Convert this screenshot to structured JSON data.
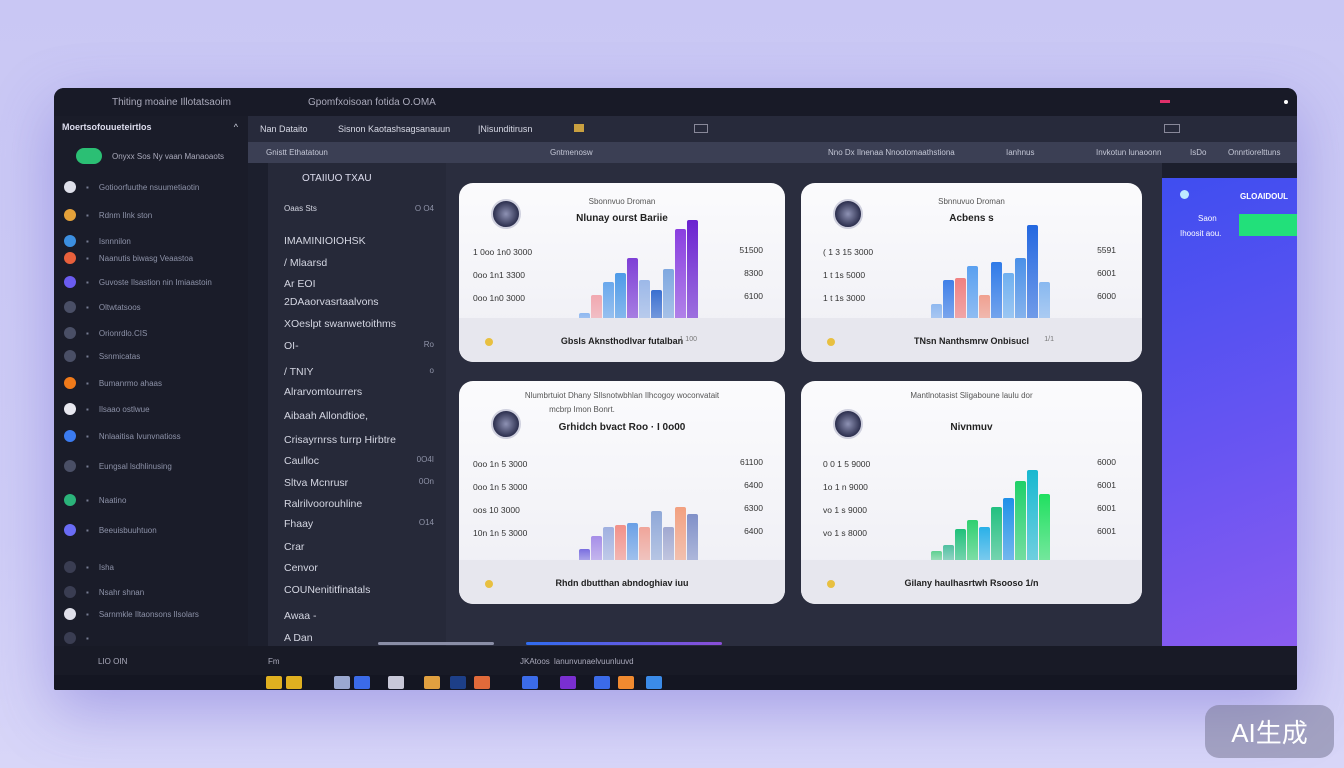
{
  "titlebar": {
    "app": "Thiting moaine Illotatsaoim",
    "doc": "Gpomfxoisoan fotida O.OMA"
  },
  "sidebar": {
    "header": "Moertsofouueteirtlos",
    "chevron": "^",
    "button_label": "Onyxx Sos Ny vaan  Manaoaots",
    "items": [
      {
        "label": "Gotioorfuuthe nsuumetiaotin",
        "color": "#dfe0ea"
      },
      {
        "label": "Rdnm Ilnk ston",
        "color": "#e4a13a"
      },
      {
        "label": "Isnnnilon",
        "color": "#3c8fe0"
      },
      {
        "label": "Naanutis biwasg  Veaastoa",
        "color": "#e8603c"
      },
      {
        "label": "Guvoste Ilsastion nin Imiaastoin",
        "color": "#6b5cf0"
      },
      {
        "label": "Oltwtatsoos",
        "color": "#4a4f66"
      },
      {
        "label": "Orionrdlo.CIS",
        "color": "#4a4f66"
      },
      {
        "label": "Ssnmicatas",
        "color": "#4a4f66"
      },
      {
        "label": "Bumanrmo ahaas",
        "color": "#f07a1a"
      },
      {
        "label": "Ilsaao ostlwue",
        "color": "#e8e8f0"
      },
      {
        "label": "Nnlaaitisa Ivunvnatioss",
        "color": "#3b7bf0"
      },
      {
        "label": "Eungsal lsdhlinusing",
        "color": "#4a4f66"
      },
      {
        "label": "Naatino",
        "color": "#2bb37a"
      },
      {
        "label": "Beeuisbuuhtuon",
        "color": "#6a6cf5"
      },
      {
        "label": "Isha",
        "color": "#3a3d52"
      },
      {
        "label": "Nsahr shnan",
        "color": "#3a3d52"
      },
      {
        "label": "Sarnmkle Iltaonsons Ilsolars",
        "color": "#e0e0ea"
      },
      {
        "label": "",
        "color": "#3a3d52"
      }
    ]
  },
  "toolbar": {
    "items": [
      "Nan Dataito",
      "Sisnon  Kaotashsagsanauun",
      "|Nisunditirusn"
    ]
  },
  "subbar": {
    "left": "Gnistt Ethatatoun",
    "mid": "Gntmenosw",
    "right1": "Nno Dx Ilnenaa Nnootomaathstiona",
    "right2": "Ianhnus",
    "right3": "Invkotun lunaoonn",
    "right4": "IsDo",
    "right5": "Onnrtiorelttuns"
  },
  "lpanel": {
    "title": "OTAIIUO TXAU",
    "items": [
      {
        "label": "Oaas Sts",
        "value": "O O4"
      },
      {
        "label": "IMAMINIOIOHSK",
        "value": ""
      },
      {
        "label": "/  Mlaarsd",
        "value": ""
      },
      {
        "label": "Ar EOI",
        "value": ""
      },
      {
        "label": "2DAaorvasrtaalvons",
        "value": ""
      },
      {
        "label": "XOeslpt swanwetoithms",
        "value": ""
      },
      {
        "label": "OI-",
        "value": "Ro"
      },
      {
        "label": "/  TNIY",
        "value": "o"
      },
      {
        "label": "Alrarvomtourrers",
        "value": ""
      },
      {
        "label": "Aibaah Allondtioe,",
        "value": ""
      },
      {
        "label": "Crisayrnrss turrp Hirbtre",
        "value": ""
      },
      {
        "label": "Caulloc",
        "value": "0O4I"
      },
      {
        "label": "Sltva Mcnrusr",
        "value": "0On"
      },
      {
        "label": "Ralrilvoorouhline",
        "value": ""
      },
      {
        "label": "Fhaay",
        "value": "O14"
      },
      {
        "label": "Crar",
        "value": ""
      },
      {
        "label": "Cenvor",
        "value": ""
      },
      {
        "label": "COUNenititfinatals",
        "value": ""
      },
      {
        "label": "Awaa -",
        "value": ""
      },
      {
        "label": "A Dan",
        "value": ""
      }
    ]
  },
  "cards": [
    {
      "sub": "Sbonnvuo Droman",
      "title": "Nlunay ourst Bariie",
      "yl": [
        "1 0oo 1n0 3000",
        "0oo 1n1 3300",
        "0oo 1n0 3000"
      ],
      "yr": [
        "51500",
        "8300",
        "6100"
      ],
      "footer": "Gbsls Aknsthodlvar futalban",
      "footnote": "1 100",
      "bars": [
        {
          "v": 12,
          "c": "#8fb8f0"
        },
        {
          "v": 28,
          "c": "#f1a8b0"
        },
        {
          "v": 40,
          "c": "#6aa8ec"
        },
        {
          "v": 48,
          "c": "#4d9ae8"
        },
        {
          "v": 62,
          "c": "#7e3fd6"
        },
        {
          "v": 42,
          "c": "#9cb8e8"
        },
        {
          "v": 33,
          "c": "#3a6fd0"
        },
        {
          "v": 52,
          "c": "#7fa8e0"
        },
        {
          "v": 88,
          "c": "#8a3fe0"
        },
        {
          "v": 96,
          "c": "#6a22d0"
        }
      ]
    },
    {
      "sub": "Sbnnuvuo Droman",
      "title": "Acbens s",
      "yl": [
        "( 1 3 15 3000",
        "1 t 1s 5000",
        "1 t 1s 3000"
      ],
      "yr": [
        "5591",
        "6001",
        "6000"
      ],
      "footer": "TNsn Nanthsmrw Onbisucl",
      "footnote": "1/1",
      "bars": [
        {
          "v": 20,
          "c": "#8fb8f0"
        },
        {
          "v": 42,
          "c": "#3f7fe8"
        },
        {
          "v": 44,
          "c": "#f08080"
        },
        {
          "v": 55,
          "c": "#5aa0f0"
        },
        {
          "v": 28,
          "c": "#f0a090"
        },
        {
          "v": 58,
          "c": "#2f7ae8"
        },
        {
          "v": 48,
          "c": "#6fb0f0"
        },
        {
          "v": 62,
          "c": "#4a90e8"
        },
        {
          "v": 92,
          "c": "#2468e0"
        },
        {
          "v": 40,
          "c": "#88b8f0"
        }
      ]
    },
    {
      "sub": "Nlumbrtuiot Dhany Sllsnotwbhlan Ilhcogoy woconvatait",
      "sub2": "mcbrp Imon Bonrt.",
      "title": "Grhidch bvact Roo ·  I 0o00",
      "yl": [
        "0oo 1n 5 3000",
        "0oo 1n 5 3000",
        "oos 10 3000",
        "10n 1n 5 3000"
      ],
      "yr": [
        "61100",
        "6400",
        "6300",
        "6400"
      ],
      "footer": "Rhdn dbutthan abndoghiav  iuu",
      "footnote": "",
      "bars": [
        {
          "v": 10,
          "c": "#7a6ee0"
        },
        {
          "v": 22,
          "c": "#a68ee8"
        },
        {
          "v": 30,
          "c": "#9fb0e0"
        },
        {
          "v": 32,
          "c": "#f29088"
        },
        {
          "v": 34,
          "c": "#6aa0e6"
        },
        {
          "v": 30,
          "c": "#f0a59a"
        },
        {
          "v": 45,
          "c": "#8fa8d8"
        },
        {
          "v": 30,
          "c": "#a0a8d0"
        },
        {
          "v": 48,
          "c": "#f2a080"
        },
        {
          "v": 42,
          "c": "#8090c8"
        }
      ]
    },
    {
      "sub": "Mantlnotasist Sligaboune laulu dor",
      "title": "Nivnmuv",
      "yl": [
        "0 0 1 5 9000",
        "1o 1 n 9000",
        "vo 1 s 9000",
        "vo 1 s 8000"
      ],
      "yr": [
        "6000",
        "6001",
        "6001",
        "6001"
      ],
      "footer": "Gilany haulhasrtwh Rsooso  1/n",
      "footnote": "",
      "bars": [
        {
          "v": 8,
          "c": "#5fd090"
        },
        {
          "v": 14,
          "c": "#4fc0a0"
        },
        {
          "v": 28,
          "c": "#20c07a"
        },
        {
          "v": 36,
          "c": "#30d070"
        },
        {
          "v": 30,
          "c": "#2ab0e8"
        },
        {
          "v": 48,
          "c": "#22c080"
        },
        {
          "v": 56,
          "c": "#1f90e8"
        },
        {
          "v": 72,
          "c": "#20d068"
        },
        {
          "v": 82,
          "c": "#18b8d0"
        },
        {
          "v": 60,
          "c": "#20e060"
        }
      ]
    }
  ],
  "rpanel": {
    "title": "GLOAIDOUL",
    "line1": "Saon",
    "line2": "Ihoosit  aou.",
    "accent": "#22e07a"
  },
  "bottom": {
    "left": "LIO  OIN",
    "items": [
      "Fm",
      "JKAtoos",
      "lanunvunaelvuunluuvd"
    ]
  },
  "taskbar_colors": [
    "#e0b020",
    "#e0b020",
    "#9aa8d0",
    "#3b6be8",
    "#c8c8d8",
    "#e0a040",
    "#1d3f88",
    "#e06a3a",
    "#3b6be8",
    "#7a2fd0",
    "#3b6be8",
    "#f08a30",
    "#3b8be8"
  ],
  "watermark": "AI生成"
}
